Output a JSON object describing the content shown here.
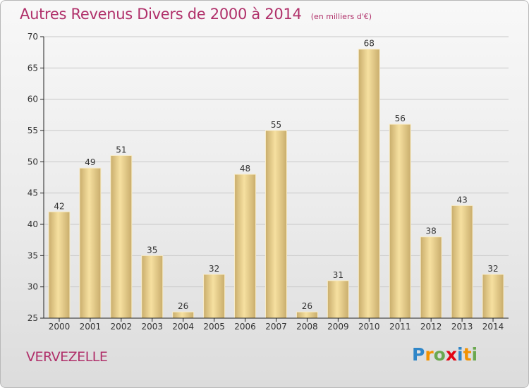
{
  "header": {
    "title": "Autres Revenus Divers de 2000 à 2014",
    "subtitle": "(en milliers d'€)"
  },
  "footer": {
    "commune": "VERVEZELLE",
    "logo_letters": [
      {
        "ch": "P",
        "color": "#2f86c8"
      },
      {
        "ch": "r",
        "color": "#f39200"
      },
      {
        "ch": "o",
        "color": "#6aa84f"
      },
      {
        "ch": "x",
        "color": "#e30613"
      },
      {
        "ch": "i",
        "color": "#2f86c8"
      },
      {
        "ch": "t",
        "color": "#f39200"
      },
      {
        "ch": "i",
        "color": "#6aa84f"
      }
    ]
  },
  "chart_data": {
    "type": "bar",
    "categories": [
      "2000",
      "2001",
      "2002",
      "2003",
      "2004",
      "2005",
      "2006",
      "2007",
      "2008",
      "2009",
      "2010",
      "2011",
      "2012",
      "2013",
      "2014"
    ],
    "values": [
      42,
      49,
      51,
      35,
      26,
      32,
      48,
      55,
      26,
      31,
      68,
      56,
      38,
      43,
      32
    ],
    "ylim": [
      25,
      70
    ],
    "yticks": [
      25,
      30,
      35,
      40,
      45,
      50,
      55,
      60,
      65,
      70
    ],
    "grid": true,
    "bar_color_light": "#f6e0a0",
    "bar_color_dark": "#c9ad6c",
    "text_color": "#333333",
    "axis_color": "#222222"
  }
}
